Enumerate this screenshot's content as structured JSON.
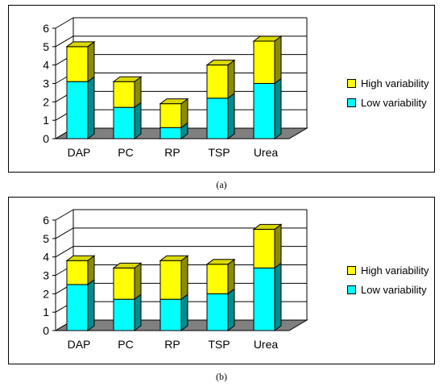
{
  "colors": {
    "high": "#ffff00",
    "low": "#00ffff",
    "floor": "#808080"
  },
  "legend": {
    "high_label": "High variability",
    "low_label": "Low variability"
  },
  "captions": {
    "a": "(a)",
    "b": "(b)"
  },
  "chart_data": [
    {
      "type": "bar",
      "stacked": true,
      "three_d": true,
      "categories": [
        "DAP",
        "PC",
        "RP",
        "TSP",
        "Urea"
      ],
      "series": [
        {
          "name": "Low variability",
          "values": [
            3.1,
            1.7,
            0.6,
            2.2,
            3.0
          ]
        },
        {
          "name": "High variability",
          "values": [
            1.9,
            1.4,
            1.3,
            1.8,
            2.3
          ]
        }
      ],
      "ylim": [
        0,
        6
      ],
      "yticks": [
        0,
        1,
        2,
        3,
        4,
        5,
        6
      ],
      "grid": true,
      "legend_position": "right"
    },
    {
      "type": "bar",
      "stacked": true,
      "three_d": true,
      "categories": [
        "DAP",
        "PC",
        "RP",
        "TSP",
        "Urea"
      ],
      "series": [
        {
          "name": "Low variability",
          "values": [
            2.5,
            1.7,
            1.7,
            2.0,
            3.4
          ]
        },
        {
          "name": "High variability",
          "values": [
            1.3,
            1.7,
            2.1,
            1.6,
            2.1
          ]
        }
      ],
      "ylim": [
        0,
        6
      ],
      "yticks": [
        0,
        1,
        2,
        3,
        4,
        5,
        6
      ],
      "grid": true,
      "legend_position": "right"
    }
  ]
}
